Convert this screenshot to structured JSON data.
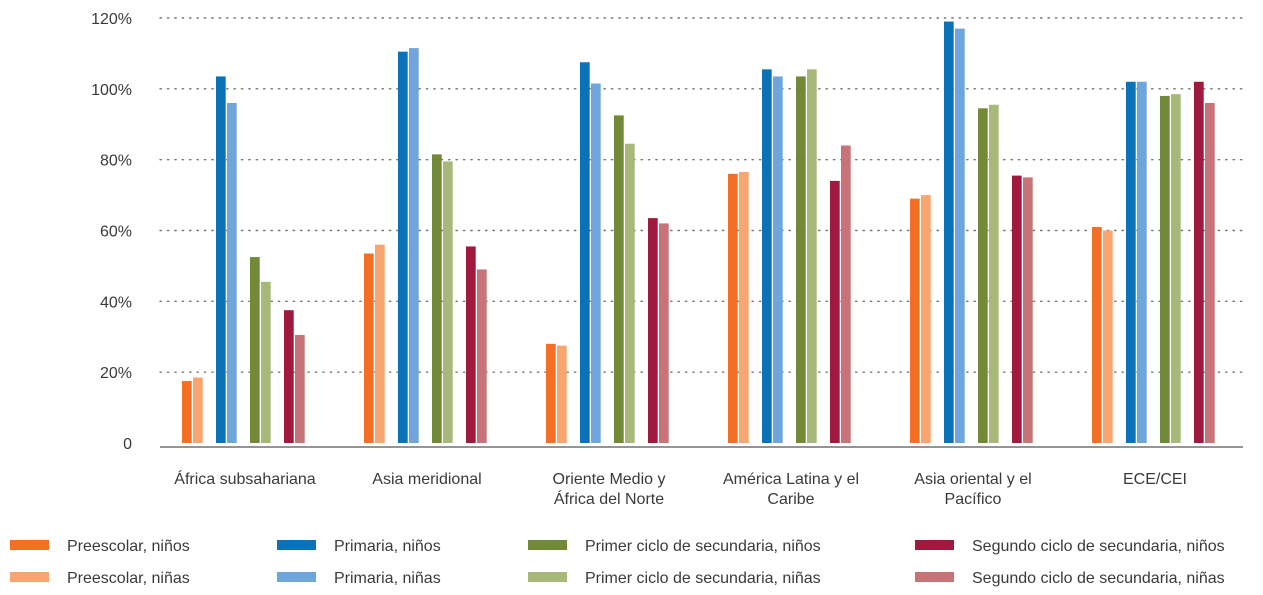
{
  "chart_data": {
    "type": "bar",
    "title": "",
    "xlabel": "",
    "ylabel": "",
    "ylim": [
      0,
      120
    ],
    "y_ticks": [
      {
        "value": 0,
        "label": "0"
      },
      {
        "value": 20,
        "label": "20%"
      },
      {
        "value": 40,
        "label": "40%"
      },
      {
        "value": 60,
        "label": "60%"
      },
      {
        "value": 80,
        "label": "80%"
      },
      {
        "value": 100,
        "label": "100%"
      },
      {
        "value": 120,
        "label": "120%"
      }
    ],
    "grid": "horizontal-dotted",
    "legend_placement": "bottom",
    "categories": [
      [
        "África subsahariana"
      ],
      [
        "Asia meridional"
      ],
      [
        "Oriente Medio y",
        "África del Norte"
      ],
      [
        "América Latina y el",
        "Caribe"
      ],
      [
        "Asia oriental y el",
        "Pacífico"
      ],
      [
        "ECE/CEI"
      ]
    ],
    "series": [
      {
        "name": "Preescolar, niños",
        "color": "#f26f25",
        "values": [
          17.5,
          53.5,
          28,
          76,
          69,
          61
        ]
      },
      {
        "name": "Preescolar, niñas",
        "color": "#f9a56f",
        "values": [
          18.5,
          56,
          27.5,
          76.5,
          70,
          60
        ]
      },
      {
        "name": "Primaria, niños",
        "color": "#0a73b7",
        "values": [
          103.5,
          110.5,
          107.5,
          105.5,
          119,
          102
        ]
      },
      {
        "name": "Primaria, niñas",
        "color": "#6ea5db",
        "values": [
          96,
          111.5,
          101.5,
          103.5,
          117,
          102
        ]
      },
      {
        "name": "Primer ciclo de secundaria, niños",
        "color": "#728a37",
        "values": [
          52.5,
          81.5,
          92.5,
          103.5,
          94.5,
          98
        ]
      },
      {
        "name": "Primer ciclo de secundaria, niñas",
        "color": "#a8b77a",
        "values": [
          45.5,
          79.5,
          84.5,
          105.5,
          95.5,
          98.5
        ]
      },
      {
        "name": "Segundo ciclo de secundaria, niños",
        "color": "#a0193f",
        "values": [
          37.5,
          55.5,
          63.5,
          74,
          75.5,
          102
        ]
      },
      {
        "name": "Segundo ciclo de secundaria, niñas",
        "color": "#c87377",
        "values": [
          30.5,
          49,
          62,
          84,
          75,
          96
        ]
      }
    ]
  }
}
